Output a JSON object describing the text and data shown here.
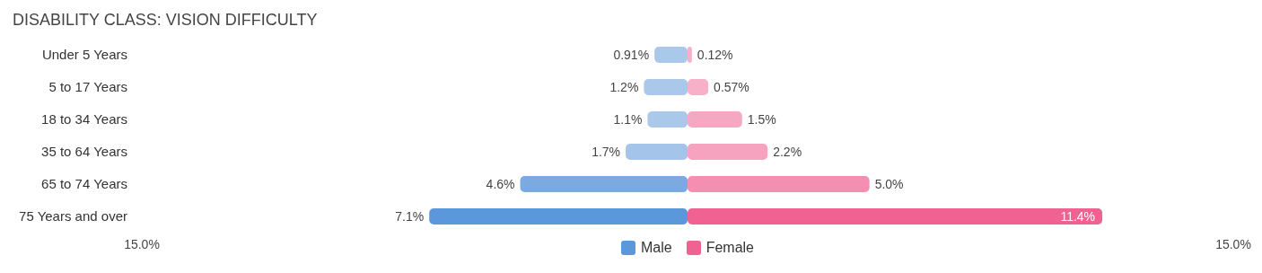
{
  "chart_data": {
    "type": "bar",
    "orientation": "horizontal",
    "title": "DISABILITY CLASS: VISION DIFFICULTY",
    "categories": [
      "Under 5 Years",
      "5 to 17 Years",
      "18 to 34 Years",
      "35 to 64 Years",
      "65 to 74 Years",
      "75 Years and over"
    ],
    "series": [
      {
        "name": "Male",
        "color": "#5b97db",
        "colors": [
          "#a9c8ea",
          "#a9c8ea",
          "#a9c8ea",
          "#a4c4e9",
          "#7aaae0",
          "#5b97db"
        ],
        "base": [
          -0.91,
          -1.2,
          -1.1,
          -1.7,
          -4.6,
          -7.1
        ],
        "values": [
          0.91,
          1.2,
          1.1,
          1.7,
          4.6,
          7.1
        ],
        "value_labels": [
          "0.91%",
          "1.2%",
          "1.1%",
          "1.7%",
          "4.6%",
          "7.1%"
        ]
      },
      {
        "name": "Female",
        "color": "#f06292",
        "colors": [
          "#f6b0c8",
          "#f6b0c8",
          "#f5a8c2",
          "#f5a3bf",
          "#f48fb1",
          "#f06292"
        ],
        "values": [
          0.12,
          0.57,
          1.5,
          2.2,
          5.0,
          11.4
        ],
        "value_labels": [
          "0.12%",
          "0.57%",
          "1.5%",
          "2.2%",
          "5.0%",
          "11.4%"
        ]
      }
    ],
    "xlim": [
      -15,
      15
    ],
    "xticks": [
      {
        "value": -15,
        "label": "15.0%"
      },
      {
        "value": 15,
        "label": "15.0%"
      }
    ],
    "grid": false,
    "legend": "bottom"
  }
}
